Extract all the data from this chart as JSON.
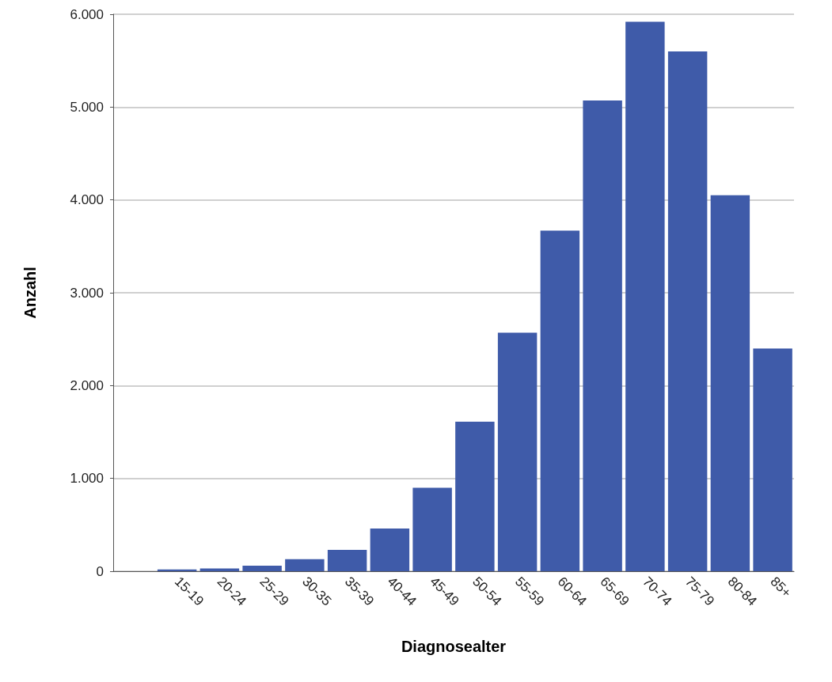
{
  "chart_data": {
    "type": "bar",
    "xlabel": "Diagnosealter",
    "ylabel": "Anzahl",
    "categories": [
      null,
      "15-19",
      "20-24",
      "25-29",
      "30-35",
      "35-39",
      "40-44",
      "45-49",
      "50-54",
      "55-59",
      "60-64",
      "65-69",
      "70-74",
      "75-79",
      "80-84",
      "85+"
    ],
    "values": [
      null,
      20,
      30,
      60,
      130,
      230,
      460,
      900,
      1610,
      2570,
      3670,
      5070,
      5920,
      5600,
      4050,
      2400
    ],
    "color": "#3f5ba9",
    "ylim": [
      0,
      6000
    ],
    "yticks": [
      0,
      {
        "value": 1000,
        "label": "1.000"
      },
      {
        "value": 2000,
        "label": "2.000"
      },
      {
        "value": 3000,
        "label": "3.000"
      },
      {
        "value": 4000,
        "label": "4.000"
      },
      {
        "value": 5000,
        "label": "5.000"
      },
      {
        "value": 6000,
        "label": "6.000"
      }
    ],
    "grid": "y"
  }
}
